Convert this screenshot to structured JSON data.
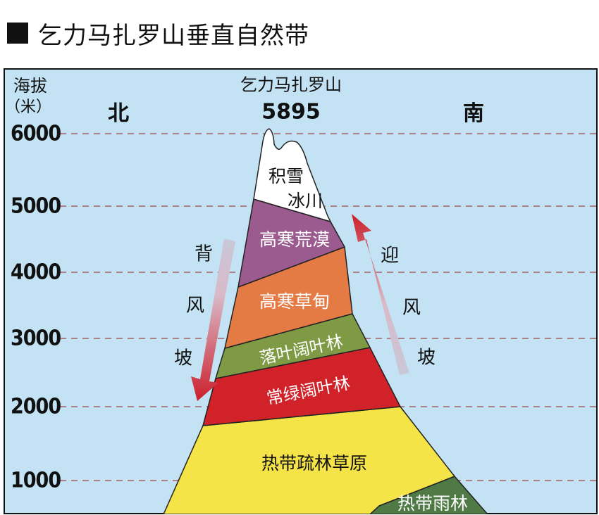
{
  "title": "乞力马扎罗山垂直自然带",
  "axis": {
    "label_line1": "海拔",
    "label_line2": "（米）"
  },
  "ticks": [
    "6000",
    "5000",
    "4000",
    "3000",
    "2000",
    "1000"
  ],
  "peak": {
    "name": "乞力马扎罗山",
    "elevation": "5895"
  },
  "directions": {
    "north": "北",
    "south": "南"
  },
  "slopes": {
    "leeward": [
      "背",
      "风",
      "坡"
    ],
    "windward": [
      "迎",
      "风",
      "坡"
    ]
  },
  "zones": {
    "snow_line1": "积雪",
    "snow_line2": "冰川",
    "alpine_desert": "高寒荒漠",
    "alpine_meadow": "高寒草甸",
    "deciduous": "落叶阔叶林",
    "evergreen": "常绿阔叶林",
    "savanna": "热带疏林草原",
    "rainforest": "热带雨林"
  },
  "colors": {
    "sky": "#c3e3f4",
    "snow": "#ffffff",
    "alpine_desert": "#9c5b8f",
    "alpine_meadow": "#e47a44",
    "deciduous": "#7f9a45",
    "evergreen": "#d1222a",
    "savanna": "#f5e447",
    "rainforest": "#4f7a46",
    "arrow_red": "#cc1f2b",
    "arrow_pale": "#c8c8d8",
    "gridline": "#a86068"
  }
}
